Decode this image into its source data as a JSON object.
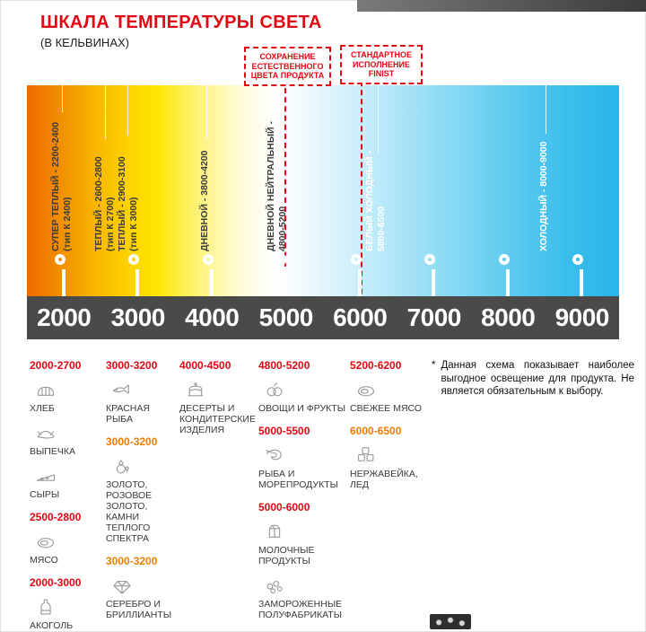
{
  "header": {
    "title": "ШКАЛА ТЕМПЕРАТУРЫ СВЕТА",
    "subtitle": "(В КЕЛЬВИНАХ)"
  },
  "callouts": [
    {
      "lines": [
        "СОХРАНЕНИЕ",
        "ЕСТЕСТВЕННОГО",
        "ЦВЕТА ПРОДУКТА"
      ]
    },
    {
      "lines": [
        "СТАНДАРТНОЕ",
        "ИСПОЛНЕНИЕ",
        "FINIST"
      ]
    }
  ],
  "scale": {
    "unit": "К",
    "ticks": [
      "2000",
      "3000",
      "4000",
      "5000",
      "6000",
      "7000",
      "8000",
      "9000"
    ],
    "zones": [
      {
        "line1": "СУПЕР ТЕПЛЫЙ - 2200-2400",
        "line2": "(тип К 2400)"
      },
      {
        "line1": "ТЕПЛЫЙ - 2600-2800",
        "line2": "(тип К 2700)"
      },
      {
        "line1": "ТЕПЛЫЙ - 2900-3100",
        "line2": "(тип К 3000)"
      },
      {
        "line1": "ДНЕВНОЙ - 3800-4200"
      },
      {
        "line1": "ДНЕВНОЙ НЕЙТРАЛЬНЫЙ -",
        "line2": "4800-5200"
      },
      {
        "line1": "БЕЛЫЙ ХОЛОДНЫЙ -",
        "line2": "5800-6500"
      },
      {
        "line1": "ХОЛОДНЫЙ - 8000-9000"
      }
    ]
  },
  "products": {
    "columns": [
      {
        "items": [
          {
            "kind": "range",
            "tone": "red",
            "label": "2000-2700"
          },
          {
            "kind": "product",
            "icon": "bread",
            "label": "ХЛЕБ"
          },
          {
            "kind": "product",
            "icon": "pastry",
            "label": "ВЫПЕЧКА"
          },
          {
            "kind": "product",
            "icon": "cheese",
            "label": "СЫРЫ"
          },
          {
            "kind": "range",
            "tone": "red",
            "label": "2500-2800"
          },
          {
            "kind": "product",
            "icon": "meat",
            "label": "МЯСО"
          },
          {
            "kind": "range",
            "tone": "red",
            "label": "2000-3000"
          },
          {
            "kind": "product",
            "icon": "bottle",
            "label": "АКОГОЛЬ"
          }
        ]
      },
      {
        "items": [
          {
            "kind": "range",
            "tone": "red",
            "label": "3000-3200"
          },
          {
            "kind": "product",
            "icon": "fish",
            "label": "КРАСНАЯ РЫБА"
          },
          {
            "kind": "range",
            "tone": "orange",
            "label": "3000-3200"
          },
          {
            "kind": "product",
            "icon": "gems",
            "label": "ЗОЛОТО, РОЗОВОЕ ЗОЛОТО, КАМНИ ТЕПЛОГО СПЕКТРА"
          },
          {
            "kind": "range",
            "tone": "orange",
            "label": "3000-3200"
          },
          {
            "kind": "product",
            "icon": "diamond",
            "label": "СЕРЕБРО И БРИЛЛИАНТЫ"
          }
        ]
      },
      {
        "items": [
          {
            "kind": "range",
            "tone": "red",
            "label": "4000-4500"
          },
          {
            "kind": "product",
            "icon": "cake",
            "label": "ДЕСЕРТЫ И КОНДИТЕРСКИЕ ИЗДЕЛИЯ"
          }
        ]
      },
      {
        "items": [
          {
            "kind": "range",
            "tone": "red",
            "label": "4800-5200"
          },
          {
            "kind": "product",
            "icon": "fruit",
            "label": "ОВОЩИ И ФРУКТЫ"
          },
          {
            "kind": "range",
            "tone": "red",
            "label": "5000-5500"
          },
          {
            "kind": "product",
            "icon": "seafood",
            "label": "РЫБА И МОРЕПРОДУКТЫ"
          },
          {
            "kind": "range",
            "tone": "red",
            "label": "5000-6000"
          },
          {
            "kind": "product",
            "icon": "dairy",
            "label": "МОЛОЧНЫЕ ПРОДУКТЫ"
          },
          {
            "kind": "product",
            "icon": "frozen",
            "label": "ЗАМОРОЖЕННЫЕ ПОЛУФАБРИКАТЫ"
          }
        ]
      },
      {
        "items": [
          {
            "kind": "range",
            "tone": "red",
            "label": "5200-6200"
          },
          {
            "kind": "product",
            "icon": "meat",
            "label": "СВЕЖЕЕ МЯСО"
          },
          {
            "kind": "range",
            "tone": "orange",
            "label": "6000-6500"
          },
          {
            "kind": "product",
            "icon": "ice",
            "label": "НЕРЖАВЕЙКА, ЛЕД"
          }
        ]
      }
    ],
    "note_mark": "*",
    "note": "Данная схема показывает наиболее выгодное освещение для продукта. Не является обязательным к выбору."
  },
  "colors": {
    "accent_red": "#e30613",
    "accent_orange": "#f07d00",
    "scale_bar_dark": "#4a4a49",
    "warm_end": "#ed6a00",
    "cool_end": "#28b5e8"
  }
}
